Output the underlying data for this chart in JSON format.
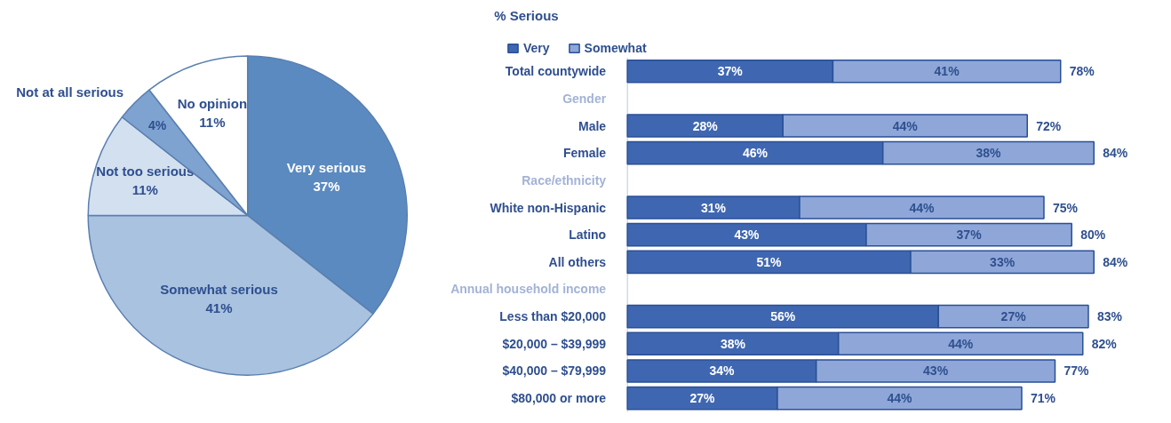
{
  "chart_data": [
    {
      "type": "pie",
      "categories": [
        "Very serious",
        "Somewhat serious",
        "Not too serious",
        "Not at all serious",
        "No opinion"
      ],
      "values": [
        37,
        41,
        11,
        4,
        11
      ],
      "colors": [
        "#5b8ac0",
        "#a8c2e0",
        "#d3e0f0",
        "#7fa3d0",
        "#ffffff"
      ],
      "value_labels": [
        "37%",
        "41%",
        "11%",
        "4%",
        "11%"
      ]
    },
    {
      "type": "bar",
      "orientation": "horizontal",
      "stacked": true,
      "title": "% Serious",
      "categories": [
        "Total countywide",
        "Gender",
        "Male",
        "Female",
        "Race/ethnicity",
        "White non-Hispanic",
        "Latino",
        "All others",
        "Annual household income",
        "Less than $20,000",
        "$20,000 – $39,999",
        "$40,000 – $79,999",
        "$80,000 or more"
      ],
      "tick_labels": "y",
      "legend": "top",
      "series": [
        {
          "name": "Very",
          "color": "#3f67b1",
          "values": [
            37,
            null,
            28,
            46,
            null,
            31,
            43,
            51,
            null,
            56,
            38,
            34,
            27
          ],
          "value_labels": [
            "37%",
            null,
            "28%",
            "46%",
            null,
            "31%",
            "43%",
            "51%",
            null,
            "56%",
            "38%",
            "34%",
            "27%"
          ]
        },
        {
          "name": "Somewhat",
          "color": "#8ea7d8",
          "values": [
            41,
            null,
            44,
            38,
            null,
            44,
            37,
            33,
            null,
            27,
            44,
            43,
            44
          ],
          "value_labels": [
            "41%",
            null,
            "44%",
            "38%",
            null,
            "44%",
            "37%",
            "33%",
            null,
            "27%",
            "44%",
            "43%",
            "44%"
          ]
        }
      ],
      "totals": [
        "78%",
        null,
        "72%",
        "84%",
        null,
        "75%",
        "80%",
        "84%",
        null,
        "83%",
        "82%",
        "77%",
        "71%"
      ]
    }
  ]
}
